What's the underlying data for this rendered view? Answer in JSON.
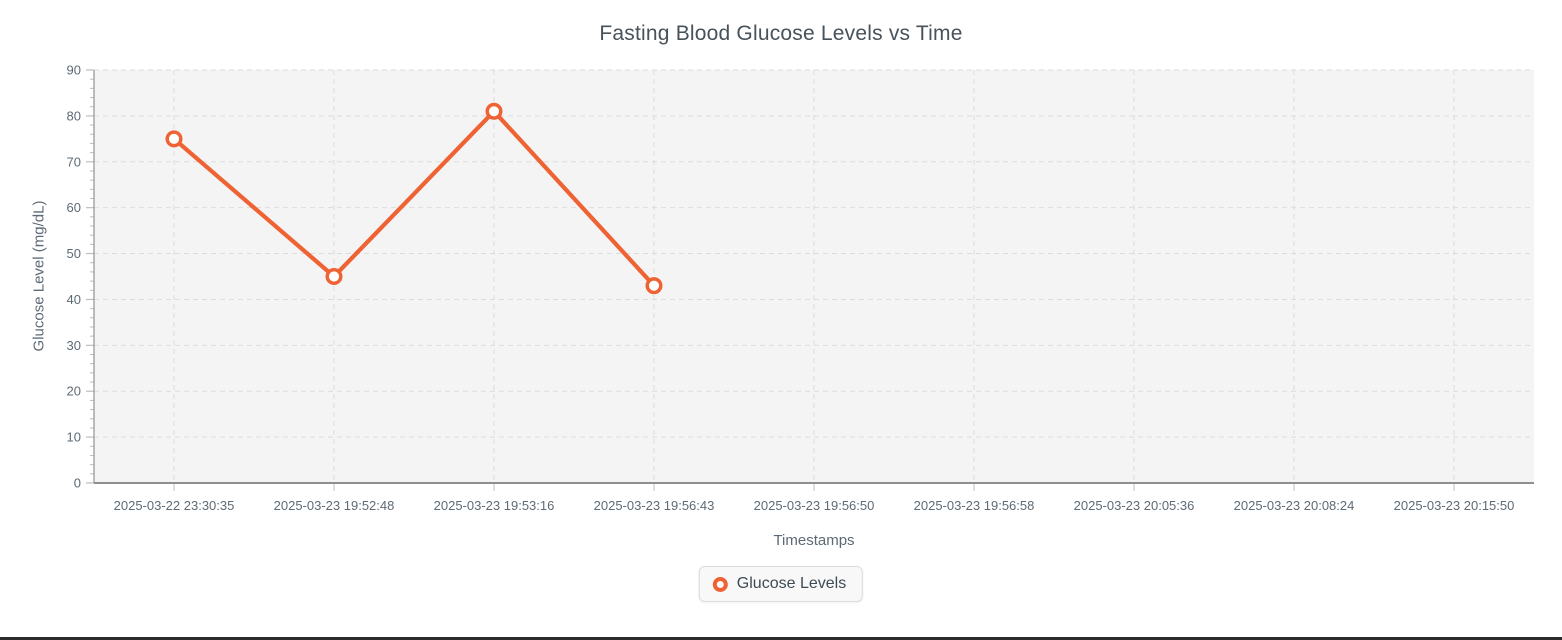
{
  "page": {
    "background": "#ffffff",
    "bottom_border_color": "#2b2b2b"
  },
  "chart_data": {
    "type": "line",
    "title": "Fasting Blood Glucose Levels vs Time",
    "xlabel": "Timestamps",
    "ylabel": "Glucose Level (mg/dL)",
    "categories": [
      "2025-03-22 23:30:35",
      "2025-03-23 19:52:48",
      "2025-03-23 19:53:16",
      "2025-03-23 19:56:43",
      "2025-03-23 19:56:50",
      "2025-03-23 19:56:58",
      "2025-03-23 20:05:36",
      "2025-03-23 20:08:24",
      "2025-03-23 20:15:50"
    ],
    "series": [
      {
        "name": "Glucose Levels",
        "color": "#ef6233",
        "marker": "open-circle",
        "values": [
          75,
          45,
          81,
          43,
          null,
          null,
          null,
          null,
          null
        ]
      }
    ],
    "ylim": [
      0,
      90
    ],
    "ytick_step": 10,
    "yminor_step": 2,
    "grid": "on",
    "grid_style": "dashed",
    "legend_position": "bottom",
    "colors": {
      "plot_background": "#f4f4f4",
      "grid_line": "#dcdcdc",
      "axis_line": "#9b9b9b",
      "tick_mark": "#b9bec3",
      "tick_label": "#5d6a75",
      "title_text": "#47525a"
    }
  },
  "legend": {
    "items": [
      {
        "label": "Glucose Levels",
        "color": "#ef6233"
      }
    ]
  }
}
